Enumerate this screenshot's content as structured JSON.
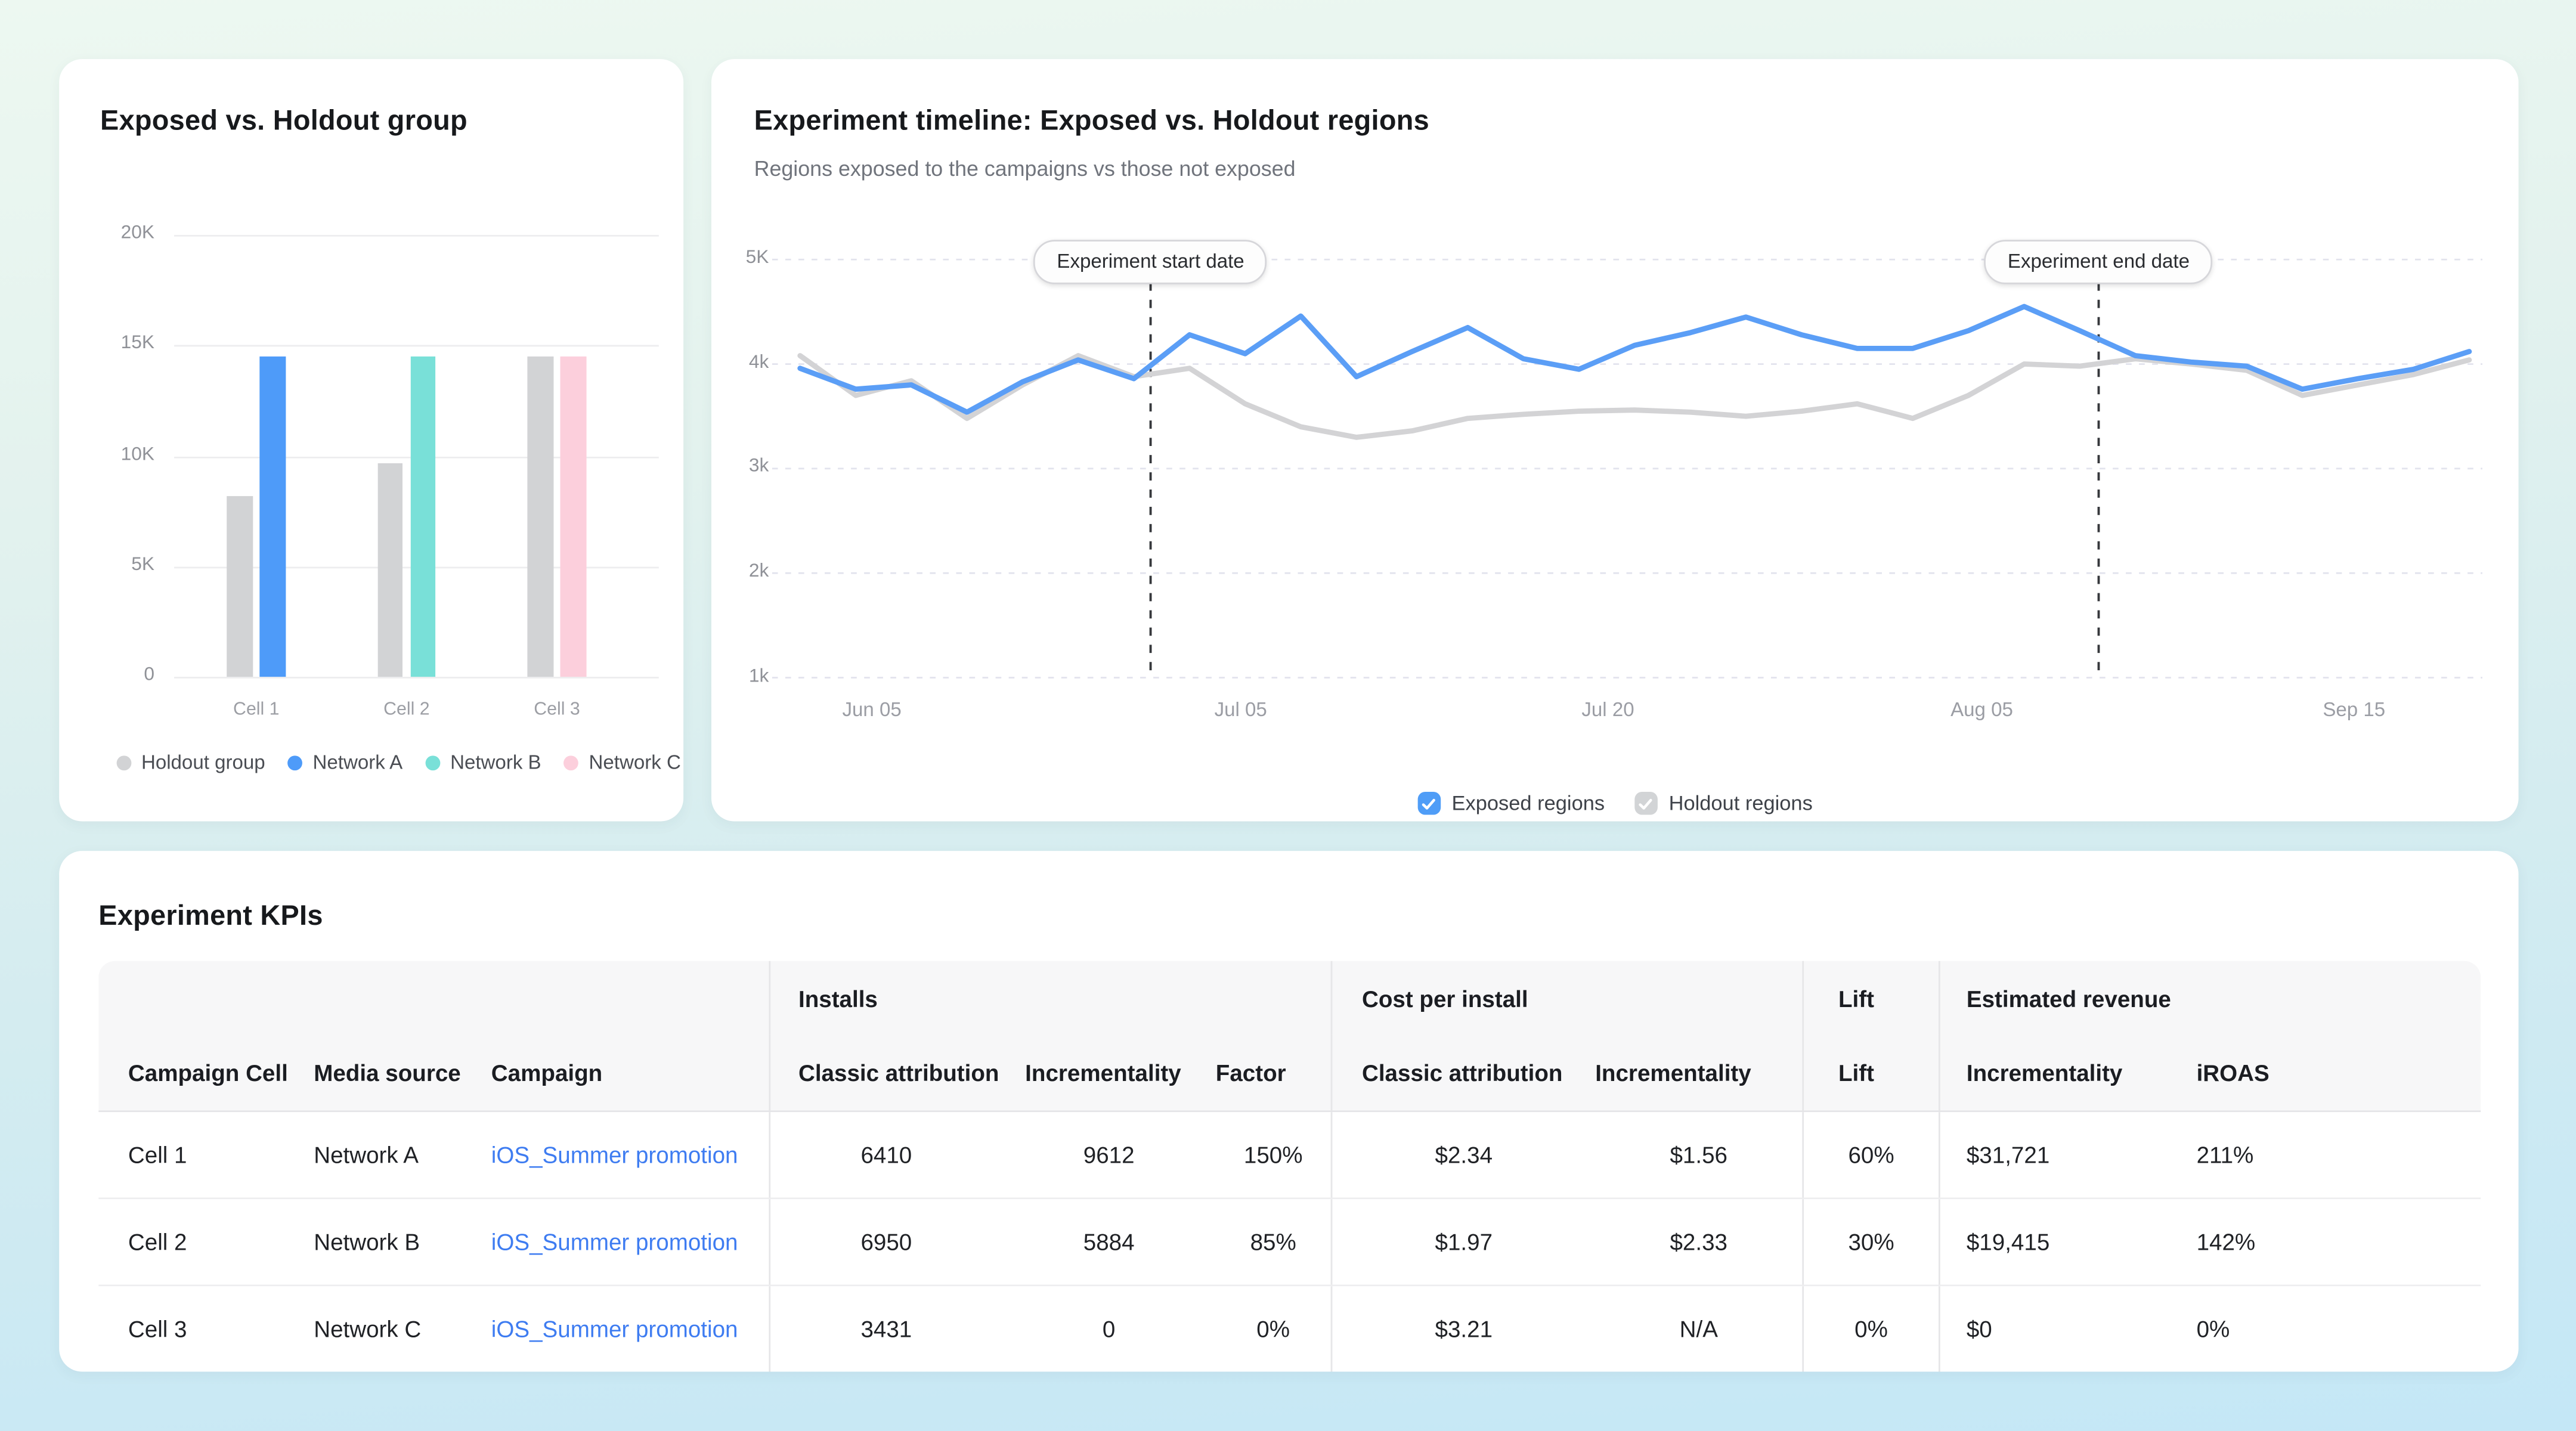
{
  "bar_card": {
    "title": "Exposed vs. Holdout group"
  },
  "timeline_card": {
    "title": "Experiment timeline: Exposed vs. Holdout regions",
    "subtitle": "Regions exposed to the campaigns vs those not exposed",
    "legend": [
      {
        "label": "Exposed regions",
        "color": "#4F9DF7",
        "checked": true
      },
      {
        "label": "Holdout regions",
        "color": "#D2D4D6",
        "checked": true
      }
    ]
  },
  "kpi_card": {
    "title": "Experiment KPIs",
    "column_groups": [
      {
        "label": "",
        "span": 3
      },
      {
        "label": "Installs",
        "span": 3
      },
      {
        "label": "Cost per install",
        "span": 2
      },
      {
        "label": "Lift",
        "span": 1
      },
      {
        "label": "Estimated revenue",
        "span": 2
      }
    ],
    "columns": [
      "Campaign Cell",
      "Media source",
      "Campaign",
      "Classic attribution",
      "Incrementality",
      "Factor",
      "Classic attribution",
      "Incrementality",
      "Lift",
      "Incrementality",
      "iROAS"
    ],
    "rows": [
      [
        "Cell 1",
        "Network A",
        "iOS_Summer promotion",
        "6410",
        "9612",
        "150%",
        "$2.34",
        "$1.56",
        "60%",
        "$31,721",
        "211%"
      ],
      [
        "Cell 2",
        "Network B",
        "iOS_Summer promotion",
        "6950",
        "5884",
        "85%",
        "$1.97",
        "$2.33",
        "30%",
        "$19,415",
        "142%"
      ],
      [
        "Cell 3",
        "Network C",
        "iOS_Summer promotion",
        "3431",
        "0",
        "0%",
        "$3.21",
        "N/A",
        "0%",
        "$0",
        "0%"
      ]
    ]
  },
  "chart_data": [
    {
      "id": "exposed_vs_holdout_bar",
      "type": "bar",
      "title": "Exposed vs. Holdout group",
      "categories": [
        "Cell 1",
        "Cell 2",
        "Cell 3"
      ],
      "series": [
        {
          "name": "Holdout group",
          "color": "#D2D3D5",
          "values": [
            8200,
            9700,
            14500
          ]
        },
        {
          "name": "Network A",
          "color": "#4E9BF9",
          "values": [
            14500,
            null,
            null
          ]
        },
        {
          "name": "Network B",
          "color": "#79E0D8",
          "values": [
            null,
            14500,
            null
          ]
        },
        {
          "name": "Network C",
          "color": "#FCCFDC",
          "values": [
            null,
            null,
            14500
          ]
        }
      ],
      "ylim": [
        0,
        20000
      ],
      "y_ticks": [
        "0",
        "5K",
        "10K",
        "15K",
        "20K"
      ],
      "grid": true,
      "legend_position": "bottom"
    },
    {
      "id": "experiment_timeline_line",
      "type": "line",
      "title": "Experiment timeline: Exposed vs. Holdout regions",
      "ylim": [
        1000,
        5000
      ],
      "y_ticks_top_to_bottom": [
        "5K",
        "4k",
        "3k",
        "2k",
        "1k"
      ],
      "x_tick_labels": [
        "Jun 05",
        "Jul 05",
        "Jul 20",
        "Aug 05",
        "Sep 15"
      ],
      "x_tick_positions_pct": [
        4.3,
        26.4,
        48.4,
        70.8,
        93.1
      ],
      "annotations": [
        {
          "label": "Experiment start date",
          "x_pct": 21.0
        },
        {
          "label": "Experiment end date",
          "x_pct": 77.8
        }
      ],
      "grid": "dashed",
      "legend_position": "bottom",
      "series": [
        {
          "name": "Holdout regions",
          "color": "#D3D3D5",
          "values": [
            4080,
            3700,
            3840,
            3480,
            3800,
            4080,
            3880,
            3960,
            3620,
            3400,
            3300,
            3360,
            3480,
            3520,
            3550,
            3560,
            3540,
            3500,
            3550,
            3620,
            3480,
            3700,
            4000,
            3980,
            4050,
            4000,
            3940,
            3700,
            3800,
            3900,
            4040
          ]
        },
        {
          "name": "Exposed regions",
          "color": "#5B9EF6",
          "values": [
            3960,
            3760,
            3800,
            3540,
            3830,
            4040,
            3860,
            4280,
            4100,
            4460,
            3880,
            4120,
            4350,
            4050,
            3950,
            4180,
            4300,
            4450,
            4280,
            4150,
            4150,
            4320,
            4550,
            4320,
            4080,
            4020,
            3980,
            3760,
            3860,
            3950,
            4120
          ]
        }
      ]
    }
  ]
}
